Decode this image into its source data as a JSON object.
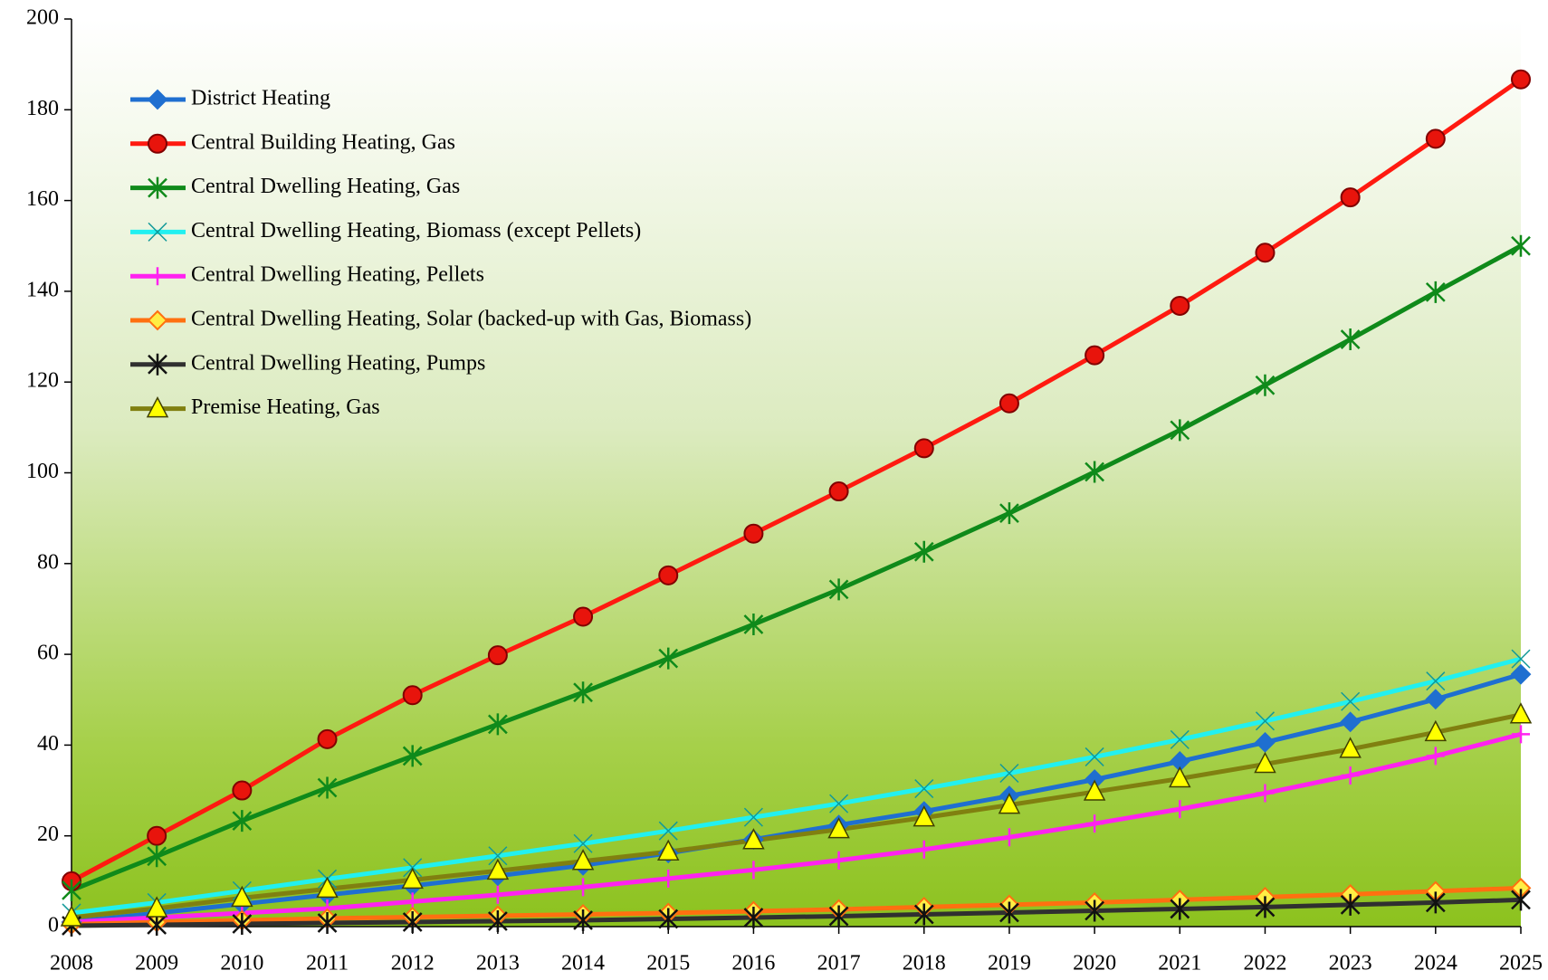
{
  "chart_data": {
    "type": "line",
    "x": [
      2008,
      2009,
      2010,
      2011,
      2012,
      2013,
      2014,
      2015,
      2016,
      2017,
      2018,
      2019,
      2020,
      2021,
      2022,
      2023,
      2024,
      2025
    ],
    "xlim": [
      2008,
      2025
    ],
    "xticks": [
      2008,
      2009,
      2010,
      2011,
      2012,
      2013,
      2014,
      2015,
      2016,
      2017,
      2018,
      2019,
      2020,
      2021,
      2022,
      2023,
      2024,
      2025
    ],
    "ylim": [
      0,
      200
    ],
    "yticks": [
      0,
      20,
      40,
      60,
      80,
      100,
      120,
      140,
      160,
      180,
      200
    ],
    "legend": "upper left",
    "series": [
      {
        "name": "District Heating",
        "color": "#1f6fd0",
        "marker": "diamond",
        "fill": "#1f6fd0",
        "values": [
          1,
          3,
          5,
          7,
          9,
          11.2,
          13.5,
          16.2,
          19.2,
          22.4,
          25.4,
          28.8,
          32.4,
          36.4,
          40.6,
          45.1,
          50.1,
          55.6
        ]
      },
      {
        "name": "Central Building Heating, Gas",
        "color": "#ff1a10",
        "marker": "circle",
        "fill": "#e8140c",
        "values": [
          10,
          20,
          30,
          41.3,
          51,
          59.8,
          68.3,
          77.4,
          86.6,
          95.9,
          105.4,
          115.3,
          125.9,
          136.8,
          148.5,
          160.7,
          173.6,
          186.7
        ]
      },
      {
        "name": "Central Dwelling Heating, Gas",
        "color": "#0f8a1a",
        "marker": "asterisk",
        "fill": "none",
        "values": [
          8,
          15.5,
          23.3,
          30.6,
          37.6,
          44.6,
          51.6,
          59.1,
          66.6,
          74.3,
          82.6,
          91.1,
          100.2,
          109.4,
          119.3,
          129.4,
          139.8,
          150
        ]
      },
      {
        "name": "Central Dwelling Heating, Biomass (except Pellets)",
        "color": "#22f0f0",
        "marker": "cross",
        "fill": "none",
        "values": [
          3,
          5.3,
          7.9,
          10.5,
          13,
          15.6,
          18.3,
          21.1,
          24.1,
          27.1,
          30.4,
          33.8,
          37.4,
          41.2,
          45.3,
          49.6,
          54.1,
          59
        ]
      },
      {
        "name": "Central Dwelling Heating, Pellets",
        "color": "#ff22f0",
        "marker": "plus",
        "fill": "none",
        "values": [
          1,
          2,
          3,
          4,
          5.5,
          7,
          8.7,
          10.6,
          12.5,
          14.6,
          17,
          19.7,
          22.7,
          25.9,
          29.4,
          33.3,
          37.6,
          42.4
        ]
      },
      {
        "name": "Central Dwelling Heating, Solar (backed-up with Gas, Biomass)",
        "color": "#ff7010",
        "marker": "diamond",
        "fill": "#ffee44",
        "values": [
          0.5,
          1,
          1.4,
          1.8,
          2.1,
          2.4,
          2.7,
          3,
          3.4,
          3.8,
          4.3,
          4.8,
          5.3,
          5.9,
          6.5,
          7.1,
          7.8,
          8.5
        ]
      },
      {
        "name": "Central Dwelling Heating, Pumps",
        "color": "#303030",
        "marker": "star",
        "fill": "none",
        "values": [
          0.2,
          0.4,
          0.6,
          0.8,
          1,
          1.2,
          1.4,
          1.7,
          2,
          2.3,
          2.7,
          3.1,
          3.5,
          3.9,
          4.3,
          4.8,
          5.3,
          5.9
        ]
      },
      {
        "name": "Premise Heating, Gas",
        "color": "#808010",
        "marker": "triangle",
        "fill": "#ffff00",
        "values": [
          2,
          4,
          6.3,
          8.3,
          10.3,
          12.3,
          14.4,
          16.5,
          19,
          21.4,
          24,
          26.8,
          29.7,
          32.6,
          35.8,
          39.1,
          42.8,
          46.7
        ]
      }
    ]
  }
}
